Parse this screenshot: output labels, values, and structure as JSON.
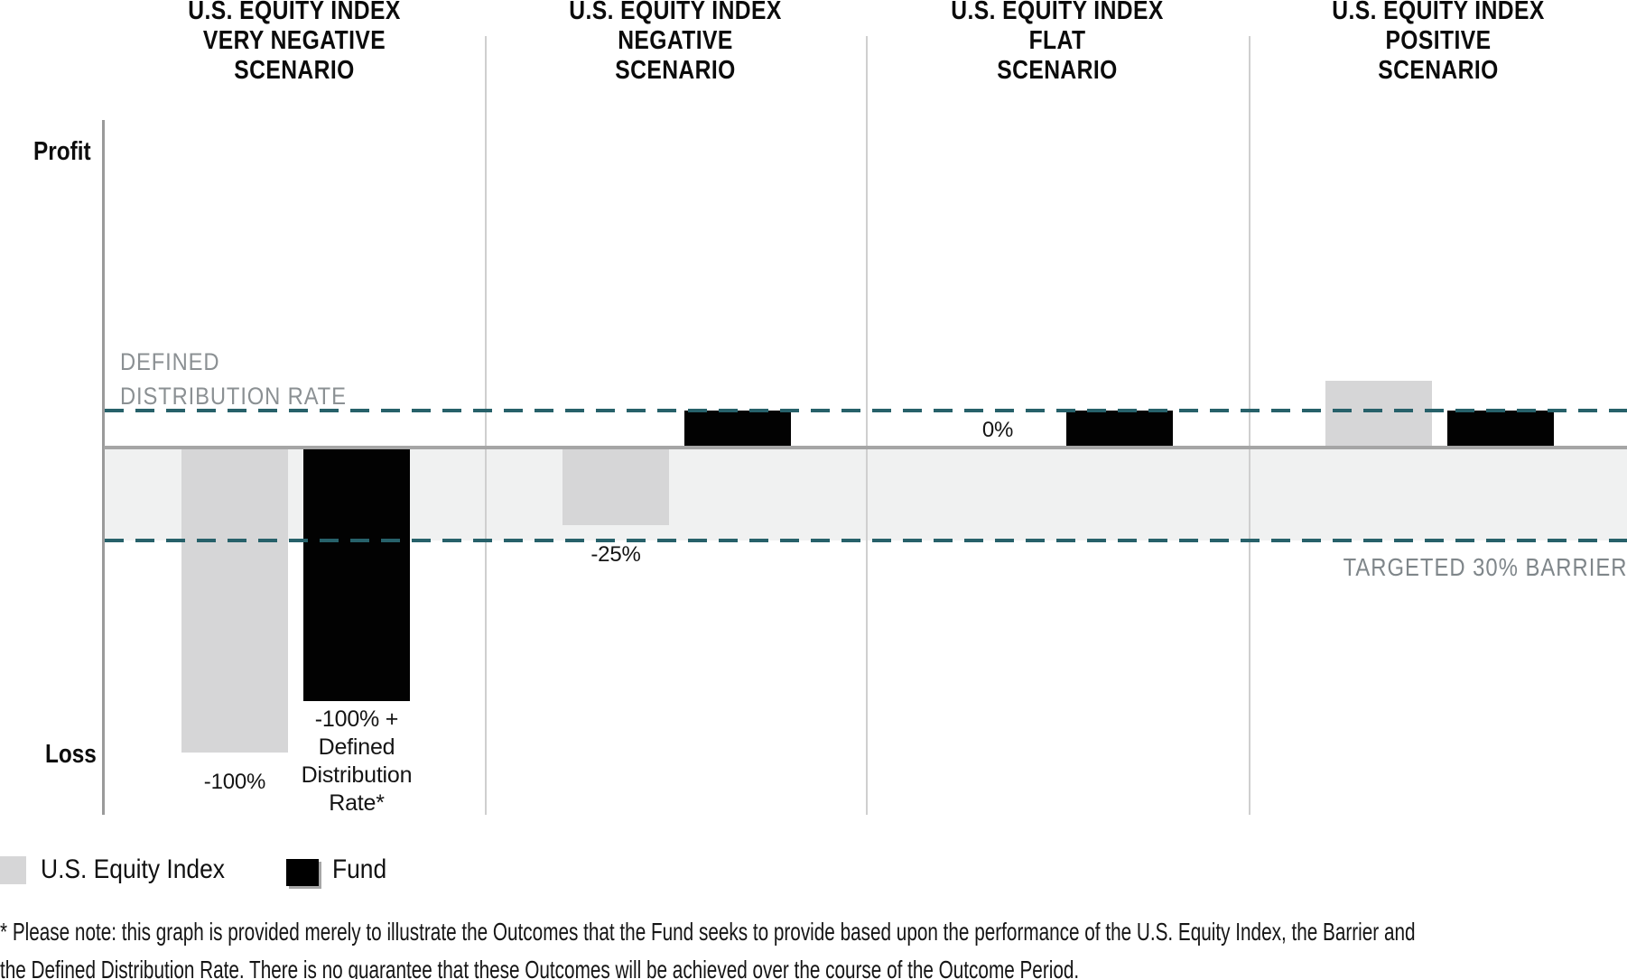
{
  "axis": {
    "profit_label": "Profit",
    "loss_label": "Loss"
  },
  "annotations": {
    "defined_distribution_rate_label": "DEFINED\nDISTRIBUTION RATE",
    "barrier_label": "TARGETED 30% BARRIER"
  },
  "scenarios": [
    {
      "title": "U.S. EQUITY INDEX\nVERY NEGATIVE\nSCENARIO",
      "index_value_label": "-100%",
      "fund_value_label": "-100% +\nDefined\nDistribution\nRate*"
    },
    {
      "title": "U.S. EQUITY INDEX\nNEGATIVE\nSCENARIO",
      "index_value_label": "-25%",
      "fund_value_label": ""
    },
    {
      "title": "U.S. EQUITY INDEX\nFLAT\nSCENARIO",
      "index_value_label": "0%",
      "fund_value_label": ""
    },
    {
      "title": "U.S. EQUITY INDEX\nPOSITIVE\nSCENARIO",
      "index_value_label": "",
      "fund_value_label": ""
    }
  ],
  "legend": {
    "items": [
      {
        "label": "U.S. Equity Index",
        "color": "#d6d6d7"
      },
      {
        "label": "Fund",
        "color": "#000000"
      }
    ]
  },
  "footnote": {
    "text": "* Please note: this graph is provided merely to illustrate the Outcomes that the Fund seeks to provide based upon the performance of the U.S. Equity Index, the Barrier and\nthe Defined Distribution Rate. There is no guarantee that these Outcomes will be achieved over the course of the Outcome Period."
  },
  "colors": {
    "teal_dashed": "#27616a",
    "index_bar": "#d6d6d7",
    "fund_bar": "#020202",
    "band": "#f0f1f1",
    "zero_line": "#a5a5a5",
    "gray_text": "#8b9093"
  },
  "chart_data": {
    "type": "bar",
    "categories": [
      "U.S. Equity Index Very Negative Scenario",
      "U.S. Equity Index Negative Scenario",
      "U.S. Equity Index Flat Scenario",
      "U.S. Equity Index Positive Scenario"
    ],
    "series": [
      {
        "name": "U.S. Equity Index",
        "values": [
          -100,
          -25,
          0,
          21.5
        ],
        "color": "#d6d6d7"
      },
      {
        "name": "Fund",
        "values": [
          -83,
          11.5,
          11.5,
          11.5
        ],
        "color": "#020202"
      }
    ],
    "value_labels": {
      "index": [
        "-100%",
        "-25%",
        "0%",
        null
      ],
      "fund": [
        "-100% + Defined Distribution Rate*",
        null,
        null,
        null
      ]
    },
    "reference_lines": [
      {
        "label": "DEFINED DISTRIBUTION RATE",
        "value": 11.5,
        "style": "dashed",
        "color": "#27616a"
      },
      {
        "label": "TARGETED 30% BARRIER",
        "value": -30,
        "style": "dashed",
        "color": "#27616a"
      }
    ],
    "band": {
      "from": 0,
      "to": -30,
      "color": "#f0f1f1"
    },
    "ylabel_top": "Profit",
    "ylabel_bottom": "Loss",
    "ylim": [
      -119,
      107
    ],
    "grid": false,
    "legend_position": "bottom-left",
    "notes": "Schematic: Fund bar tops in negative/flat/positive scenarios align with the Defined Distribution Rate dashed line; shaded band spans 0% down to the targeted 30% barrier."
  }
}
